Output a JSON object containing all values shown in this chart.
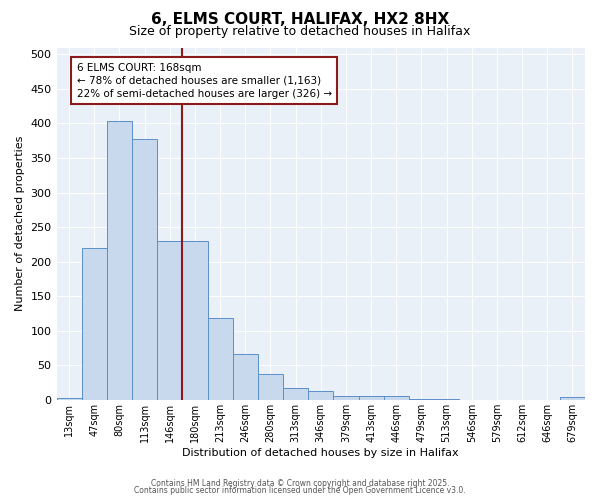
{
  "title": "6, ELMS COURT, HALIFAX, HX2 8HX",
  "subtitle": "Size of property relative to detached houses in Halifax",
  "xlabel": "Distribution of detached houses by size in Halifax",
  "ylabel": "Number of detached properties",
  "bar_labels": [
    "13sqm",
    "47sqm",
    "80sqm",
    "113sqm",
    "146sqm",
    "180sqm",
    "213sqm",
    "246sqm",
    "280sqm",
    "313sqm",
    "346sqm",
    "379sqm",
    "413sqm",
    "446sqm",
    "479sqm",
    "513sqm",
    "546sqm",
    "579sqm",
    "612sqm",
    "646sqm",
    "679sqm"
  ],
  "bar_values": [
    3,
    220,
    403,
    377,
    230,
    230,
    119,
    67,
    38,
    17,
    13,
    5,
    5,
    5,
    1,
    1,
    0,
    0,
    0,
    0,
    4
  ],
  "bar_color": "#c9d9ed",
  "bar_edgecolor": "#5b8fc9",
  "vline_color": "#8b1a1a",
  "annotation_box_text": "6 ELMS COURT: 168sqm\n← 78% of detached houses are smaller (1,163)\n22% of semi-detached houses are larger (326) →",
  "annotation_fontsize": 7.5,
  "ylim": [
    0,
    510
  ],
  "yticks": [
    0,
    50,
    100,
    150,
    200,
    250,
    300,
    350,
    400,
    450,
    500
  ],
  "background_color": "#eaf0f8",
  "footer_line1": "Contains HM Land Registry data © Crown copyright and database right 2025.",
  "footer_line2": "Contains public sector information licensed under the Open Government Licence v3.0.",
  "title_fontsize": 11,
  "subtitle_fontsize": 9,
  "ylabel_fontsize": 8,
  "xlabel_fontsize": 8
}
